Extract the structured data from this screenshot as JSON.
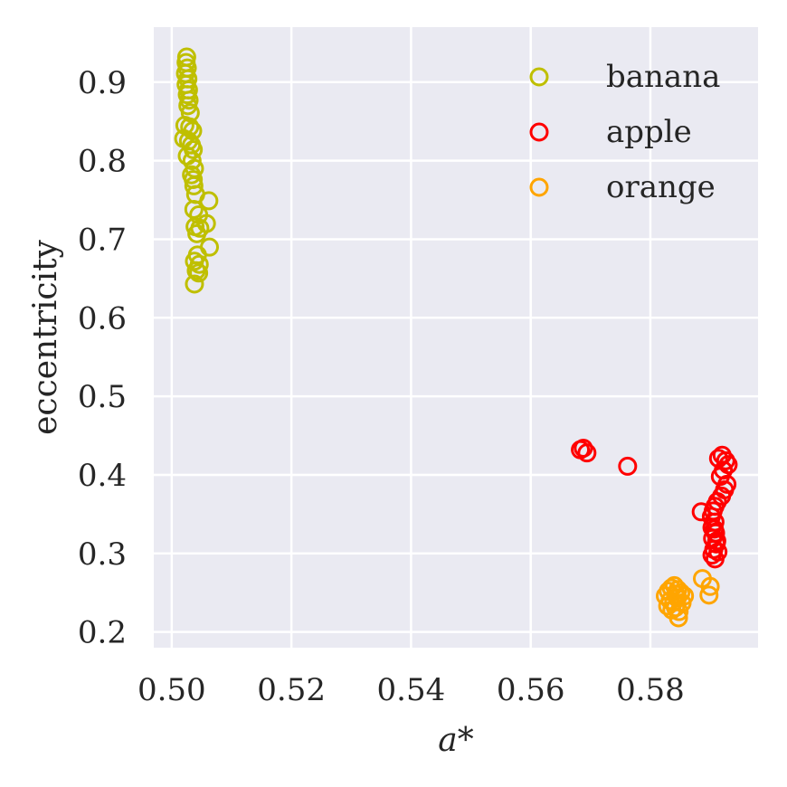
{
  "chart_data": {
    "type": "scatter",
    "title": "",
    "xlabel": "a*",
    "ylabel": "eccentricity",
    "xlim": [
      0.497,
      0.598
    ],
    "ylim": [
      0.18,
      0.97
    ],
    "x_ticks": [
      0.5,
      0.52,
      0.54,
      0.56,
      0.58
    ],
    "x_tick_labels": [
      "0.50",
      "0.52",
      "0.54",
      "0.56",
      "0.58"
    ],
    "y_ticks": [
      0.2,
      0.3,
      0.4,
      0.5,
      0.6,
      0.7,
      0.8,
      0.9
    ],
    "y_tick_labels": [
      "0.2",
      "0.3",
      "0.4",
      "0.5",
      "0.6",
      "0.7",
      "0.8",
      "0.9"
    ],
    "grid": true,
    "background": "#eaeaf2",
    "legend_position": "top-right",
    "marker": "hollow-circle",
    "series": [
      {
        "name": "banana",
        "color": "#bfbf00",
        "points": [
          [
            0.5025,
            0.932
          ],
          [
            0.5024,
            0.925
          ],
          [
            0.5026,
            0.918
          ],
          [
            0.5023,
            0.911
          ],
          [
            0.5027,
            0.904
          ],
          [
            0.5024,
            0.897
          ],
          [
            0.5028,
            0.89
          ],
          [
            0.5026,
            0.884
          ],
          [
            0.5029,
            0.877
          ],
          [
            0.5027,
            0.87
          ],
          [
            0.5031,
            0.861
          ],
          [
            0.5022,
            0.845
          ],
          [
            0.503,
            0.843
          ],
          [
            0.5035,
            0.838
          ],
          [
            0.502,
            0.828
          ],
          [
            0.5028,
            0.825
          ],
          [
            0.5033,
            0.82
          ],
          [
            0.5036,
            0.814
          ],
          [
            0.5026,
            0.806
          ],
          [
            0.5034,
            0.8
          ],
          [
            0.5038,
            0.79
          ],
          [
            0.5033,
            0.782
          ],
          [
            0.5036,
            0.776
          ],
          [
            0.5037,
            0.768
          ],
          [
            0.504,
            0.757
          ],
          [
            0.5062,
            0.749
          ],
          [
            0.5037,
            0.738
          ],
          [
            0.5045,
            0.731
          ],
          [
            0.5058,
            0.72
          ],
          [
            0.5039,
            0.716
          ],
          [
            0.5047,
            0.714
          ],
          [
            0.5042,
            0.707
          ],
          [
            0.5063,
            0.69
          ],
          [
            0.5043,
            0.68
          ],
          [
            0.5038,
            0.672
          ],
          [
            0.5046,
            0.668
          ],
          [
            0.5041,
            0.66
          ],
          [
            0.5045,
            0.657
          ],
          [
            0.5038,
            0.643
          ]
        ]
      },
      {
        "name": "apple",
        "color": "#ff0000",
        "points": [
          [
            0.5683,
            0.432
          ],
          [
            0.5688,
            0.434
          ],
          [
            0.5694,
            0.428
          ],
          [
            0.5762,
            0.411
          ],
          [
            0.5885,
            0.353
          ],
          [
            0.5914,
            0.421
          ],
          [
            0.592,
            0.425
          ],
          [
            0.5926,
            0.418
          ],
          [
            0.593,
            0.413
          ],
          [
            0.5922,
            0.406
          ],
          [
            0.5917,
            0.398
          ],
          [
            0.5928,
            0.388
          ],
          [
            0.5924,
            0.381
          ],
          [
            0.5919,
            0.373
          ],
          [
            0.5912,
            0.366
          ],
          [
            0.5908,
            0.36
          ],
          [
            0.5905,
            0.354
          ],
          [
            0.5902,
            0.347
          ],
          [
            0.5908,
            0.34
          ],
          [
            0.5903,
            0.333
          ],
          [
            0.5909,
            0.326
          ],
          [
            0.5904,
            0.319
          ],
          [
            0.591,
            0.312
          ],
          [
            0.5906,
            0.305
          ],
          [
            0.5903,
            0.298
          ],
          [
            0.5908,
            0.293
          ],
          [
            0.5913,
            0.302
          ],
          [
            0.5911,
            0.316
          ],
          [
            0.5907,
            0.331
          ]
        ]
      },
      {
        "name": "orange",
        "color": "#ffa500",
        "points": [
          [
            0.5887,
            0.268
          ],
          [
            0.59,
            0.258
          ],
          [
            0.5898,
            0.247
          ],
          [
            0.5825,
            0.246
          ],
          [
            0.583,
            0.252
          ],
          [
            0.5835,
            0.256
          ],
          [
            0.584,
            0.259
          ],
          [
            0.5846,
            0.254
          ],
          [
            0.5851,
            0.25
          ],
          [
            0.5857,
            0.246
          ],
          [
            0.5833,
            0.24
          ],
          [
            0.5839,
            0.238
          ],
          [
            0.5845,
            0.243
          ],
          [
            0.5829,
            0.233
          ],
          [
            0.5836,
            0.228
          ],
          [
            0.5842,
            0.231
          ],
          [
            0.5848,
            0.226
          ],
          [
            0.5847,
            0.218
          ],
          [
            0.5853,
            0.237
          ],
          [
            0.5843,
            0.248
          ]
        ]
      }
    ]
  }
}
